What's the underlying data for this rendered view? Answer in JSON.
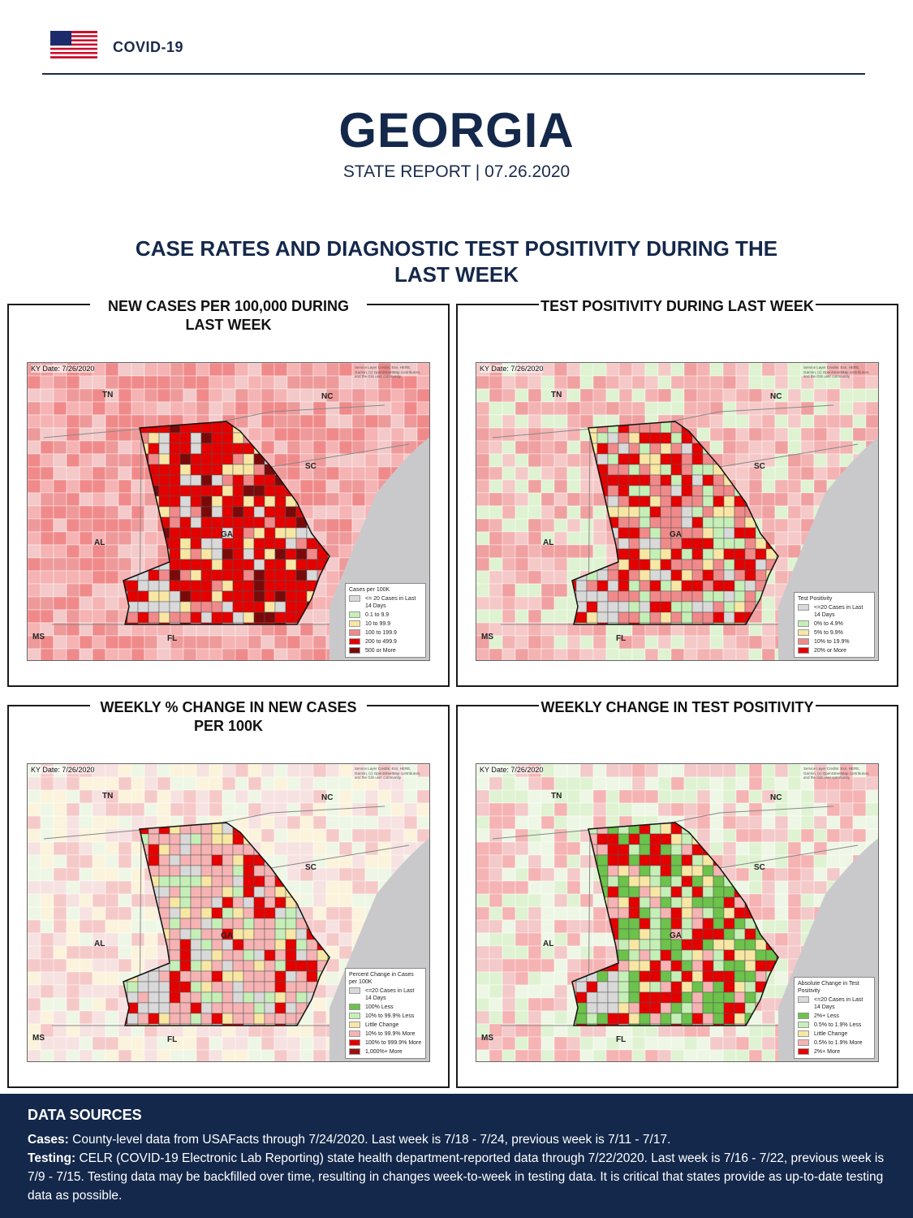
{
  "header": {
    "brand": "COVID-19",
    "flag_icon": "us-flag-icon"
  },
  "title": "GEORGIA",
  "subtitle": "STATE REPORT | 07.26.2020",
  "section_title": "CASE RATES AND DIAGNOSTIC TEST POSITIVITY DURING THE LAST WEEK",
  "map_common": {
    "date": "Date: 7/26/2020",
    "ky": "KY",
    "credit": "Service Layer Credits: Esri, HERE, Garmin, (c) OpenStreetMap contributors, and the GIS user community",
    "states": {
      "tn": "TN",
      "nc": "NC",
      "sc": "SC",
      "al": "AL",
      "ga": "GA",
      "ms": "MS",
      "fl": "FL"
    }
  },
  "panels": [
    {
      "title": "NEW CASES PER 100,000 DURING LAST WEEK",
      "legend_title": "Cases per 100K",
      "legend": [
        {
          "label": "<= 20 Cases in Last 14 Days",
          "color": "#d9d9d9"
        },
        {
          "label": "0.1 to 9.9",
          "color": "#c6efb8"
        },
        {
          "label": "10 to 99.9",
          "color": "#f8e7a4"
        },
        {
          "label": "100 to 199.9",
          "color": "#f08a8a"
        },
        {
          "label": "200 to 499.9",
          "color": "#e50000"
        },
        {
          "label": "500 or More",
          "color": "#7a0a0a"
        }
      ]
    },
    {
      "title": "TEST POSITIVITY DURING LAST WEEK",
      "legend_title": "Test Positivity",
      "legend": [
        {
          "label": "<=20 Cases in Last 14 Days",
          "color": "#d9d9d9"
        },
        {
          "label": "0% to 4.9%",
          "color": "#c6efb8"
        },
        {
          "label": "5% to 9.9%",
          "color": "#f8e7a4"
        },
        {
          "label": "10% to 19.9%",
          "color": "#f08a8a"
        },
        {
          "label": "20% or More",
          "color": "#e50000"
        }
      ]
    },
    {
      "title": "WEEKLY % CHANGE IN NEW CASES PER 100K",
      "legend_title": "Percent Change in Cases per 100K",
      "legend": [
        {
          "label": "<=20 Cases in Last 14 Days",
          "color": "#d9d9d9"
        },
        {
          "label": "100% Less",
          "color": "#6cc24a"
        },
        {
          "label": "10% to 99.9% Less",
          "color": "#c6efb8"
        },
        {
          "label": "Little Change",
          "color": "#f8e7a4"
        },
        {
          "label": "10% to 99.9% More",
          "color": "#f6b3b3"
        },
        {
          "label": "100% to 999.9% More",
          "color": "#e50000"
        },
        {
          "label": "1,000%+ More",
          "color": "#9b1010"
        }
      ]
    },
    {
      "title": "WEEKLY CHANGE IN TEST POSITIVITY",
      "legend_title": "Absolute Change in Test Positivity",
      "legend": [
        {
          "label": "<=20 Cases in Last 14 Days",
          "color": "#d9d9d9"
        },
        {
          "label": "2%+ Less",
          "color": "#6cc24a"
        },
        {
          "label": "0.5% to 1.9% Less",
          "color": "#c6efb8"
        },
        {
          "label": "Little Change",
          "color": "#f8e7a4"
        },
        {
          "label": "0.5% to 1.9% More",
          "color": "#f6b3b3"
        },
        {
          "label": "2%+ More",
          "color": "#e50000"
        }
      ]
    }
  ],
  "footer": {
    "title": "DATA SOURCES",
    "cases_label": "Cases:",
    "cases_text": "County-level data from USAFacts through 7/24/2020. Last week is 7/18 - 7/24, previous week is 7/11 - 7/17.",
    "testing_label": "Testing:",
    "testing_text": "CELR (COVID-19 Electronic Lab Reporting) state health department-reported data through 7/22/2020. Last week is 7/16 - 7/22, previous week is 7/9 - 7/15. Testing data may be backfilled over time, resulting in changes week-to-week in testing data. It is critical that states provide as up-to-date testing data as possible."
  }
}
